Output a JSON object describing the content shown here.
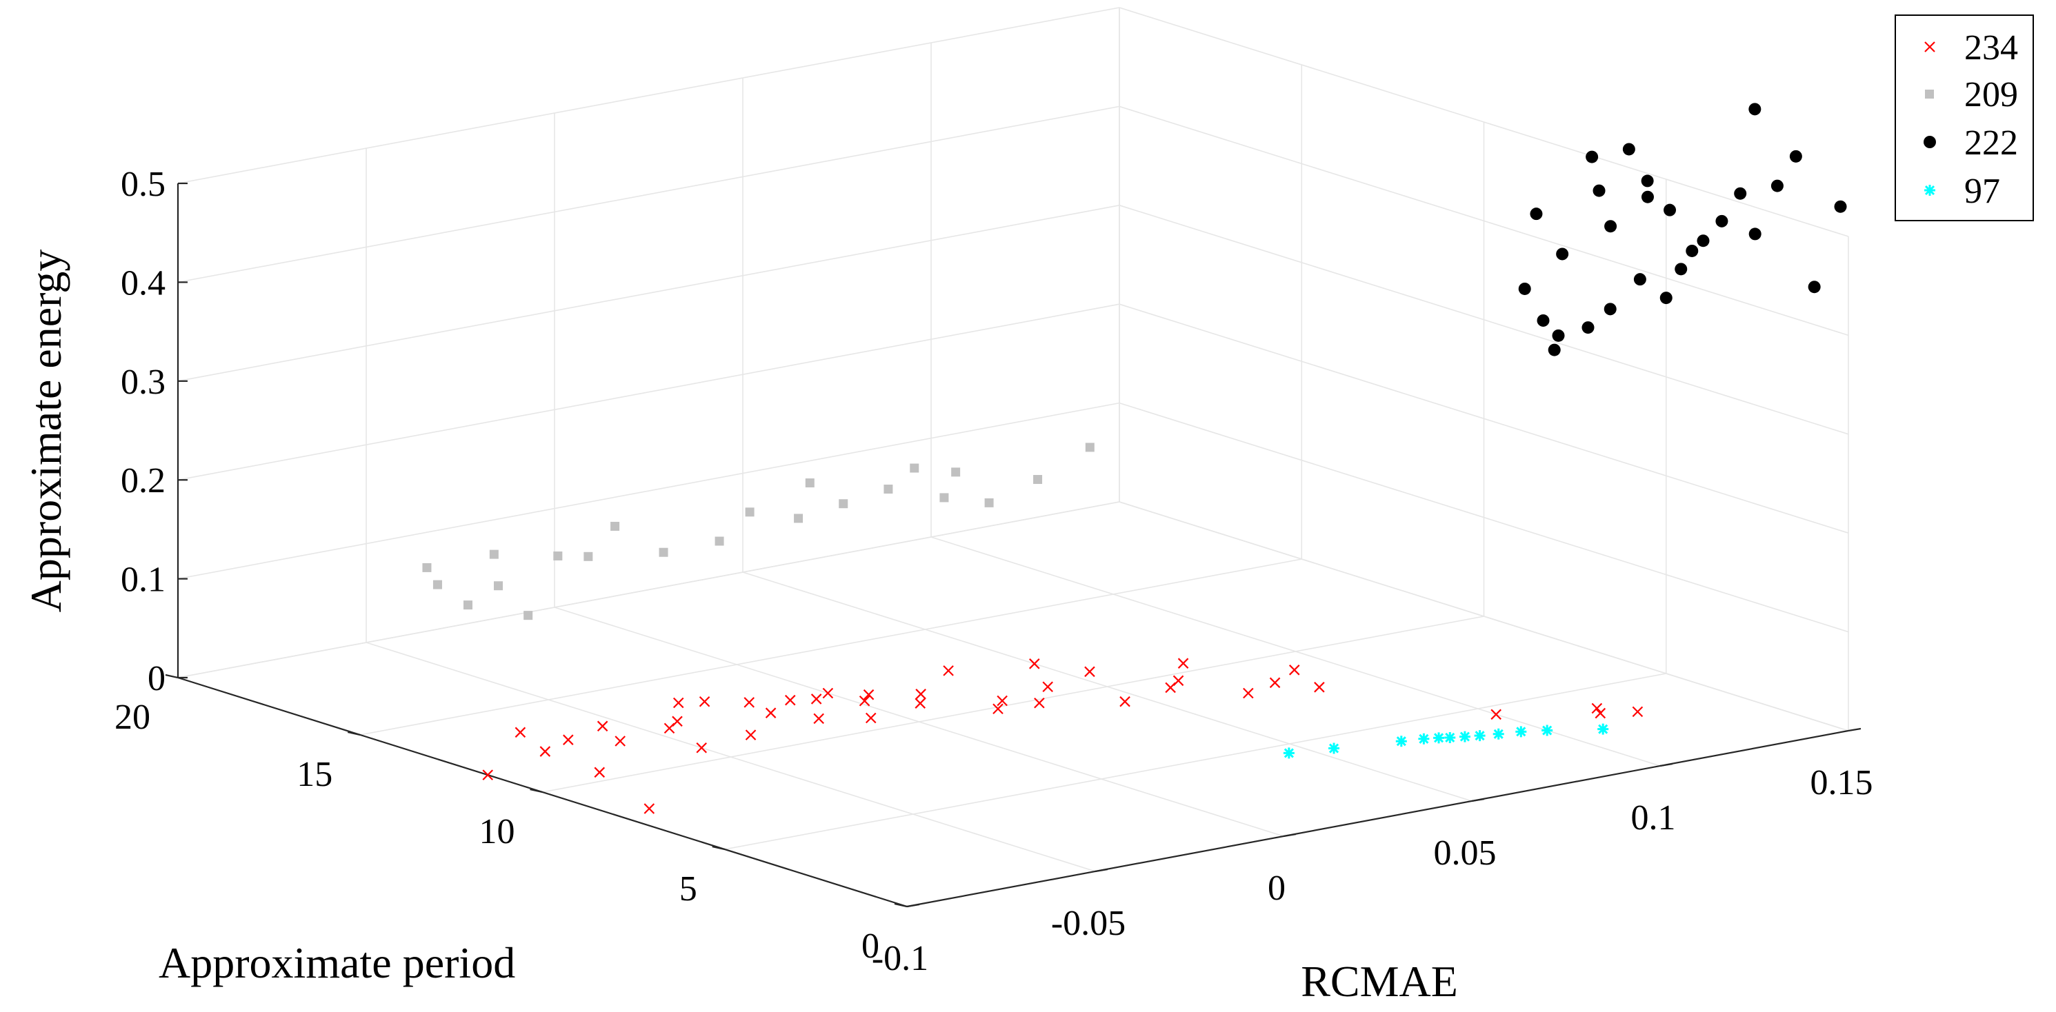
{
  "chart_data": {
    "type": "scatter",
    "projection": "3d",
    "x_axis": {
      "label": "RCMAE",
      "range": [
        -0.1,
        0.15
      ],
      "ticks": [
        -0.1,
        -0.05,
        0,
        0.05,
        0.1,
        0.15
      ],
      "tick_labels": [
        "-0.1",
        "-0.05",
        "0",
        "0.05",
        "0.1",
        "0.15"
      ]
    },
    "y_axis": {
      "label": "Approximate period",
      "range": [
        0,
        20
      ],
      "ticks": [
        0,
        5,
        10,
        15,
        20
      ],
      "tick_labels": [
        "0",
        "5",
        "10",
        "15",
        "20"
      ]
    },
    "z_axis": {
      "label": "Approximate energy",
      "range": [
        0,
        0.5
      ],
      "ticks": [
        0,
        0.1,
        0.2,
        0.3,
        0.4,
        0.5
      ],
      "tick_labels": [
        "0",
        "0.1",
        "0.2",
        "0.3",
        "0.4",
        "0.5"
      ]
    },
    "grid": true,
    "legend_position": "top-right",
    "series": [
      {
        "name": "234",
        "marker": "x",
        "color": "#ff0000",
        "points": [
          [
            -0.1,
            11.5,
            0.0
          ],
          [
            -0.091,
            8.0,
            0.0
          ],
          [
            -0.08,
            10.5,
            0.0
          ],
          [
            -0.078,
            12.2,
            0.0
          ],
          [
            -0.072,
            13.5,
            0.0
          ],
          [
            -0.068,
            12.6,
            0.0
          ],
          [
            -0.06,
            12.0,
            0.0
          ],
          [
            -0.055,
            13.0,
            0.0
          ],
          [
            -0.05,
            10.8,
            0.0
          ],
          [
            -0.045,
            12.2,
            0.0
          ],
          [
            -0.04,
            12.5,
            0.0
          ],
          [
            -0.035,
            11.0,
            0.0
          ],
          [
            -0.03,
            13.5,
            0.0
          ],
          [
            -0.025,
            13.3,
            0.0
          ],
          [
            -0.02,
            12.0,
            0.0
          ],
          [
            -0.018,
            12.8,
            0.0
          ],
          [
            -0.015,
            11.2,
            0.0
          ],
          [
            -0.01,
            12.5,
            0.0
          ],
          [
            -0.006,
            10.7,
            0.0
          ],
          [
            -0.005,
            12.3,
            0.0
          ],
          [
            0.0,
            12.5,
            0.0
          ],
          [
            0.002,
            11.7,
            0.0
          ],
          [
            0.006,
            12.0,
            0.0
          ],
          [
            0.01,
            11.0,
            0.0
          ],
          [
            0.015,
            11.5,
            0.0
          ],
          [
            0.02,
            9.9,
            0.0
          ],
          [
            0.025,
            10.3,
            0.0
          ],
          [
            0.03,
            9.8,
            0.0
          ],
          [
            0.032,
            12.5,
            0.0
          ],
          [
            0.04,
            10.6,
            0.0
          ],
          [
            0.045,
            9.0,
            0.0
          ],
          [
            0.05,
            12.0,
            0.0
          ],
          [
            0.055,
            11.0,
            0.0
          ],
          [
            0.06,
            9.3,
            0.0
          ],
          [
            0.065,
            9.6,
            0.0
          ],
          [
            0.07,
            8.2,
            0.0
          ],
          [
            0.075,
            10.5,
            0.0
          ],
          [
            0.08,
            8.5,
            0.0
          ],
          [
            0.085,
            7.8,
            0.0
          ],
          [
            0.09,
            9.0,
            0.0
          ],
          [
            0.1,
            4.5,
            0.0
          ],
          [
            0.118,
            3.5,
            0.0
          ],
          [
            0.12,
            3.8,
            0.0
          ],
          [
            0.125,
            3.2,
            0.0
          ]
        ]
      },
      {
        "name": "209",
        "marker": "square",
        "color": "#c0c0c0",
        "points": [
          [
            -0.06,
            17.0,
            0.1
          ],
          [
            -0.058,
            17.5,
            0.11
          ],
          [
            -0.05,
            17.2,
            0.07
          ],
          [
            -0.045,
            17.0,
            0.12
          ],
          [
            -0.04,
            17.4,
            0.08
          ],
          [
            -0.035,
            17.1,
            0.05
          ],
          [
            -0.03,
            16.8,
            0.11
          ],
          [
            -0.02,
            17.0,
            0.1
          ],
          [
            -0.01,
            17.3,
            0.12
          ],
          [
            0.0,
            17.0,
            0.09
          ],
          [
            0.01,
            16.5,
            0.1
          ],
          [
            0.02,
            16.7,
            0.12
          ],
          [
            0.03,
            16.4,
            0.11
          ],
          [
            0.035,
            16.6,
            0.14
          ],
          [
            0.04,
            16.2,
            0.12
          ],
          [
            0.05,
            16.0,
            0.13
          ],
          [
            0.055,
            15.8,
            0.15
          ],
          [
            0.06,
            15.5,
            0.12
          ],
          [
            0.065,
            15.7,
            0.14
          ],
          [
            0.07,
            15.3,
            0.11
          ],
          [
            0.08,
            15.0,
            0.13
          ],
          [
            0.09,
            14.6,
            0.16
          ]
        ]
      },
      {
        "name": "222",
        "marker": "dot",
        "color": "#000000",
        "points": [
          [
            0.13,
            6.0,
            0.33
          ],
          [
            0.133,
            6.2,
            0.34
          ],
          [
            0.137,
            5.8,
            0.35
          ],
          [
            0.14,
            5.5,
            0.37
          ],
          [
            0.145,
            5.2,
            0.4
          ],
          [
            0.15,
            5.0,
            0.38
          ],
          [
            0.128,
            6.1,
            0.36
          ],
          [
            0.135,
            6.3,
            0.42
          ],
          [
            0.142,
            5.7,
            0.45
          ],
          [
            0.148,
            5.3,
            0.48
          ],
          [
            0.152,
            4.8,
            0.41
          ],
          [
            0.155,
            4.5,
            0.44
          ],
          [
            0.126,
            6.4,
            0.39
          ],
          [
            0.131,
            6.6,
            0.46
          ],
          [
            0.139,
            5.9,
            0.52
          ],
          [
            0.146,
            5.1,
            0.5
          ],
          [
            0.15,
            4.9,
            0.47
          ],
          [
            0.144,
            5.4,
            0.53
          ],
          [
            0.138,
            5.6,
            0.49
          ],
          [
            0.153,
            4.6,
            0.43
          ],
          [
            0.158,
            4.3,
            0.46
          ],
          [
            0.16,
            4.0,
            0.49
          ],
          [
            0.162,
            3.8,
            0.45
          ],
          [
            0.165,
            3.5,
            0.5
          ],
          [
            0.168,
            3.3,
            0.53
          ],
          [
            0.16,
            3.6,
            0.58
          ],
          [
            0.17,
            3.0,
            0.4
          ],
          [
            0.175,
            2.8,
            0.48
          ]
        ]
      },
      {
        "name": "97",
        "marker": "star",
        "color": "#00ffff",
        "points": [
          [
            0.045,
            4.5,
            0.0
          ],
          [
            0.055,
            4.3,
            0.0
          ],
          [
            0.07,
            4.0,
            0.0
          ],
          [
            0.075,
            3.9,
            0.0
          ],
          [
            0.078,
            3.8,
            0.0
          ],
          [
            0.08,
            3.7,
            0.0
          ],
          [
            0.083,
            3.6,
            0.0
          ],
          [
            0.086,
            3.5,
            0.0
          ],
          [
            0.09,
            3.4,
            0.0
          ],
          [
            0.095,
            3.3,
            0.0
          ],
          [
            0.1,
            3.1,
            0.0
          ],
          [
            0.11,
            2.6,
            0.0
          ]
        ]
      }
    ]
  }
}
